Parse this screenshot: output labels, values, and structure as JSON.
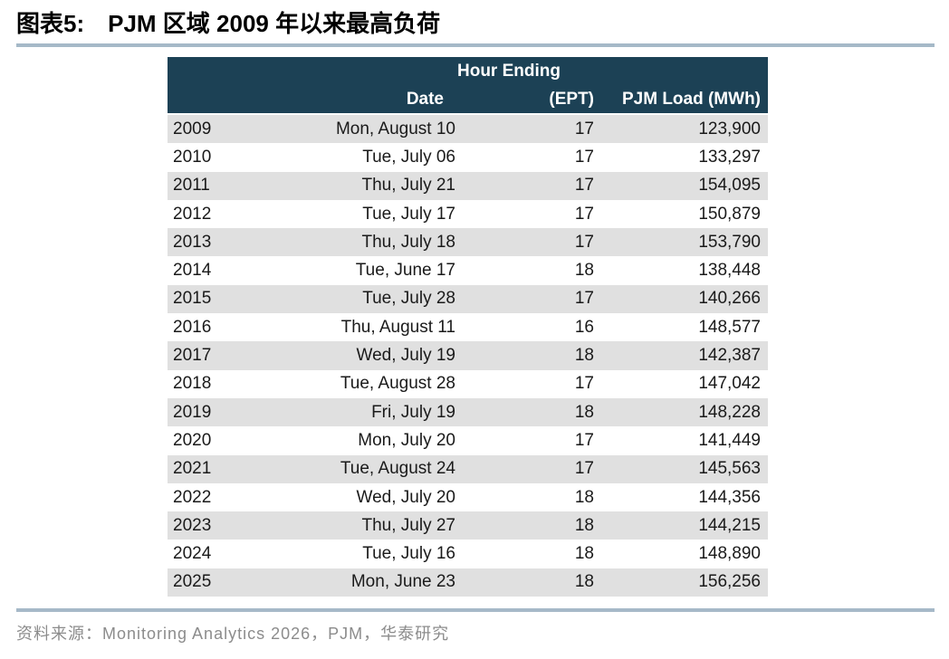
{
  "title": {
    "prefix": "图表5:",
    "text": "PJM 区域 2009 年以来最高负荷"
  },
  "table": {
    "header_group": "Hour Ending",
    "columns": {
      "year": "",
      "date": "Date",
      "ept": "(EPT)",
      "load": "PJM Load (MWh)"
    }
  },
  "source": {
    "text": "资料来源：Monitoring Analytics 2026，PJM，华泰研究"
  },
  "colors": {
    "header_bg": "#1c4155",
    "row_alt": "#e0e0e0",
    "rule": "#a6b9c8",
    "source_text": "#8c8c8c"
  },
  "chart_data": {
    "type": "table",
    "title": "图表5: PJM 区域 2009 年以来最高负荷",
    "columns": [
      "",
      "Date",
      "Hour Ending (EPT)",
      "PJM Load (MWh)"
    ],
    "rows": [
      [
        "2009",
        "Mon, August 10",
        "17",
        "123,900"
      ],
      [
        "2010",
        "Tue, July 06",
        "17",
        "133,297"
      ],
      [
        "2011",
        "Thu, July 21",
        "17",
        "154,095"
      ],
      [
        "2012",
        "Tue, July 17",
        "17",
        "150,879"
      ],
      [
        "2013",
        "Thu, July 18",
        "17",
        "153,790"
      ],
      [
        "2014",
        "Tue, June 17",
        "18",
        "138,448"
      ],
      [
        "2015",
        "Tue, July 28",
        "17",
        "140,266"
      ],
      [
        "2016",
        "Thu, August 11",
        "16",
        "148,577"
      ],
      [
        "2017",
        "Wed, July 19",
        "18",
        "142,387"
      ],
      [
        "2018",
        "Tue, August 28",
        "17",
        "147,042"
      ],
      [
        "2019",
        "Fri, July 19",
        "18",
        "148,228"
      ],
      [
        "2020",
        "Mon, July 20",
        "17",
        "141,449"
      ],
      [
        "2021",
        "Tue, August 24",
        "17",
        "145,563"
      ],
      [
        "2022",
        "Wed, July 20",
        "18",
        "144,356"
      ],
      [
        "2023",
        "Thu, July 27",
        "18",
        "144,215"
      ],
      [
        "2024",
        "Tue, July 16",
        "18",
        "148,890"
      ],
      [
        "2025",
        "Mon, June 23",
        "18",
        "156,256"
      ]
    ],
    "source": "资料来源：Monitoring Analytics 2026，PJM，华泰研究"
  }
}
